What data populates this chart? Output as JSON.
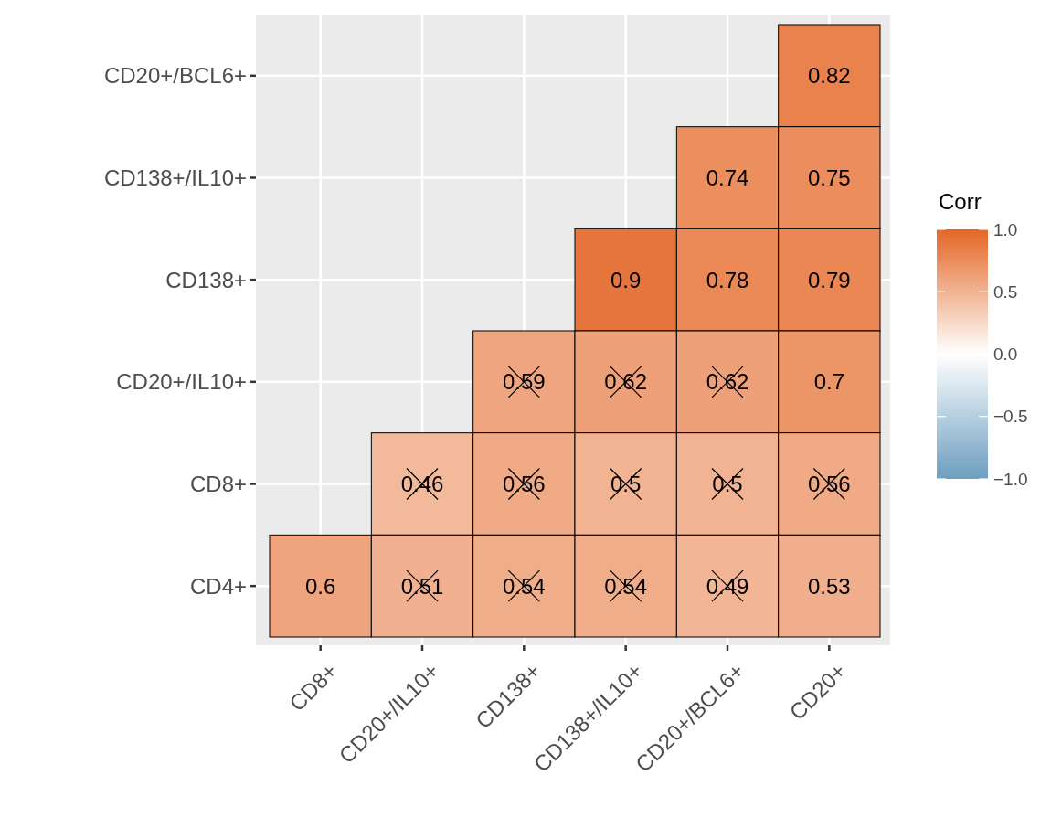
{
  "chart_data": {
    "type": "heatmap",
    "legend_title": "Corr",
    "categories": [
      "CD8+",
      "CD20+/IL10+",
      "CD138+",
      "CD138+/IL10+",
      "CD20+/BCL6+",
      "CD20+"
    ],
    "y_categories": [
      "CD20+/BCL6+",
      "CD138+/IL10+",
      "CD138+",
      "CD20+/IL10+",
      "CD8+",
      "CD4+"
    ],
    "cells": [
      [
        null,
        null,
        null,
        null,
        null,
        0.82
      ],
      [
        null,
        null,
        null,
        null,
        0.74,
        0.75
      ],
      [
        null,
        null,
        null,
        0.9,
        0.78,
        0.79
      ],
      [
        null,
        null,
        0.59,
        0.62,
        0.62,
        0.7
      ],
      [
        null,
        0.46,
        0.56,
        0.5,
        0.5,
        0.56
      ],
      [
        0.6,
        0.51,
        0.54,
        0.54,
        0.49,
        0.53
      ]
    ],
    "clim": [
      -1,
      1
    ],
    "cticks": [
      {
        "value": -1,
        "label": "−1.0"
      },
      {
        "value": -0.5,
        "label": "−0.5"
      },
      {
        "value": 0,
        "label": "0.0"
      },
      {
        "value": 0.5,
        "label": "0.5"
      },
      {
        "value": 1,
        "label": "1.0"
      }
    ],
    "data_labels": true,
    "grid": true
  }
}
